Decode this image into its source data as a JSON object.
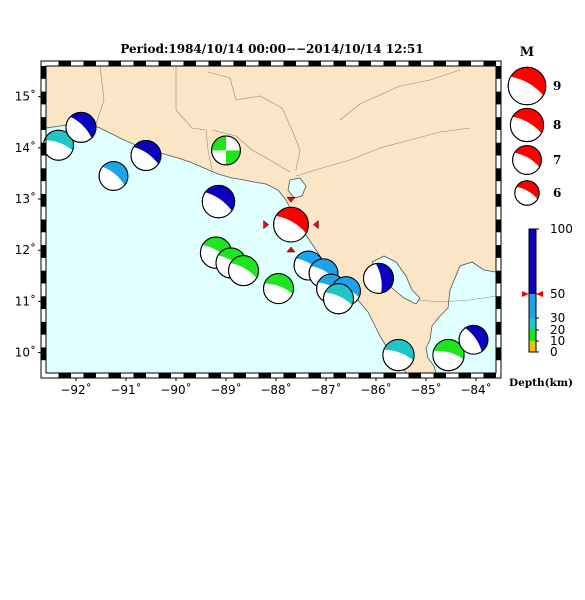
{
  "title": "Period:1984/10/14 00:00−−2014/10/14 12:51",
  "map": {
    "lon_range": [
      -92.6,
      -83.6
    ],
    "lat_range": [
      9.6,
      15.6
    ],
    "lon_ticks": [
      -92,
      -91,
      -90,
      -89,
      -88,
      -87,
      -86,
      -85,
      -84
    ],
    "lon_tick_labels": [
      "−92˚",
      "−91˚",
      "−90˚",
      "−89˚",
      "−88˚",
      "−87˚",
      "−86˚",
      "−85˚",
      "−84˚"
    ],
    "lat_ticks": [
      10,
      11,
      12,
      13,
      14,
      15
    ],
    "lat_tick_labels": [
      "10˚",
      "11˚",
      "12˚",
      "13˚",
      "14˚",
      "15˚"
    ],
    "colors": {
      "sea": "#e0ffff",
      "land": "#fae5c6",
      "coast": "#555555"
    }
  },
  "events": [
    {
      "lon": -92.35,
      "lat": 14.05,
      "mag": 6.0,
      "color": "#22c4c8",
      "strike": 20
    },
    {
      "lon": -91.9,
      "lat": 14.4,
      "mag": 6.0,
      "color": "#0a00bd",
      "strike": 45
    },
    {
      "lon": -91.25,
      "lat": 13.45,
      "mag": 5.8,
      "color": "#1fa3e8",
      "strike": 40
    },
    {
      "lon": -90.6,
      "lat": 13.85,
      "mag": 6.0,
      "color": "#0a00bd",
      "strike": 35
    },
    {
      "lon": -89.0,
      "lat": 13.95,
      "mag": 5.8,
      "color": "#1ee61e",
      "strike": 0,
      "quad": true
    },
    {
      "lon": -89.15,
      "lat": 12.95,
      "mag": 6.4,
      "color": "#0a00bd",
      "strike": 35
    },
    {
      "lon": -89.2,
      "lat": 11.95,
      "mag": 6.2,
      "color": "#1ee61e",
      "strike": 30
    },
    {
      "lon": -88.9,
      "lat": 11.75,
      "mag": 6.0,
      "color": "#1ee61e",
      "strike": 30
    },
    {
      "lon": -88.65,
      "lat": 11.6,
      "mag": 6.0,
      "color": "#1ee61e",
      "strike": 30
    },
    {
      "lon": -87.95,
      "lat": 11.25,
      "mag": 6.0,
      "color": "#1ee61e",
      "strike": 20
    },
    {
      "lon": -87.35,
      "lat": 11.7,
      "mag": 5.8,
      "color": "#1fa3e8",
      "strike": 30
    },
    {
      "lon": -87.05,
      "lat": 11.55,
      "mag": 5.8,
      "color": "#1fa3e8",
      "strike": 30
    },
    {
      "lon": -86.9,
      "lat": 11.25,
      "mag": 5.8,
      "color": "#1fa3e8",
      "strike": 25
    },
    {
      "lon": -86.6,
      "lat": 11.2,
      "mag": 5.8,
      "color": "#1fa3e8",
      "strike": 25
    },
    {
      "lon": -86.75,
      "lat": 11.05,
      "mag": 6.0,
      "color": "#22c4c8",
      "strike": 25
    },
    {
      "lon": -85.95,
      "lat": 11.45,
      "mag": 6.0,
      "color": "#0a00bd",
      "strike": 80
    },
    {
      "lon": -85.55,
      "lat": 9.95,
      "mag": 6.2,
      "color": "#22c4c8",
      "strike": 20
    },
    {
      "lon": -84.55,
      "lat": 9.95,
      "mag": 6.2,
      "color": "#1ee61e",
      "strike": 15
    },
    {
      "lon": -84.05,
      "lat": 10.25,
      "mag": 5.8,
      "color": "#0a00bd",
      "strike": 55
    },
    {
      "lon": -87.7,
      "lat": 12.5,
      "mag": 6.8,
      "color": "#ff0000",
      "strike": 30,
      "selected": true
    }
  ],
  "legend_magnitude": {
    "title": "M",
    "items": [
      {
        "label": "9",
        "mag": 9,
        "color": "#ff0000"
      },
      {
        "label": "8",
        "mag": 8,
        "color": "#ff0000"
      },
      {
        "label": "7",
        "mag": 7,
        "color": "#ff0000"
      },
      {
        "label": "6",
        "mag": 6,
        "color": "#ff0000"
      }
    ]
  },
  "legend_depth": {
    "title": "Depth(km)",
    "ticks": [
      0,
      10,
      20,
      30,
      50,
      100
    ],
    "tick_labels": [
      "0",
      "10",
      "20",
      "30",
      "50",
      "100"
    ],
    "bands": [
      {
        "from": 0,
        "to": 10,
        "color": "#f2c200"
      },
      {
        "from": 10,
        "to": 20,
        "color": "#1ee61e"
      },
      {
        "from": 20,
        "to": 30,
        "color": "#22c4c8"
      },
      {
        "from": 30,
        "to": 50,
        "color": "#1fa3e8"
      },
      {
        "from": 50,
        "to": 100,
        "color": "#0a00bd"
      }
    ],
    "marker_depth": 50
  }
}
